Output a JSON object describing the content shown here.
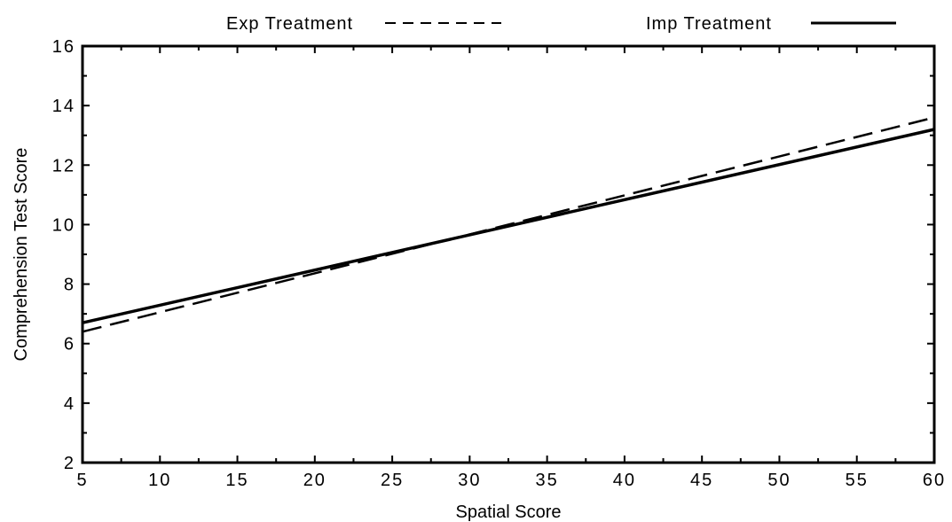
{
  "chart_data": {
    "type": "line",
    "title": "",
    "xlabel": "Spatial Score",
    "ylabel": "Comprehension Test Score",
    "xlim": [
      5,
      60
    ],
    "ylim": [
      2,
      16
    ],
    "x_ticks": [
      5,
      10,
      15,
      20,
      25,
      30,
      35,
      40,
      45,
      50,
      55,
      60
    ],
    "y_ticks": [
      2,
      4,
      6,
      8,
      10,
      12,
      14,
      16
    ],
    "grid": false,
    "legend_position": "top",
    "series": [
      {
        "name": "Exp Treatment",
        "style": "dashed",
        "color": "#000000",
        "x": [
          5,
          60
        ],
        "y": [
          6.4,
          13.6
        ]
      },
      {
        "name": "Imp Treatment",
        "style": "solid",
        "color": "#000000",
        "x": [
          5,
          60
        ],
        "y": [
          6.7,
          13.2
        ]
      }
    ]
  }
}
